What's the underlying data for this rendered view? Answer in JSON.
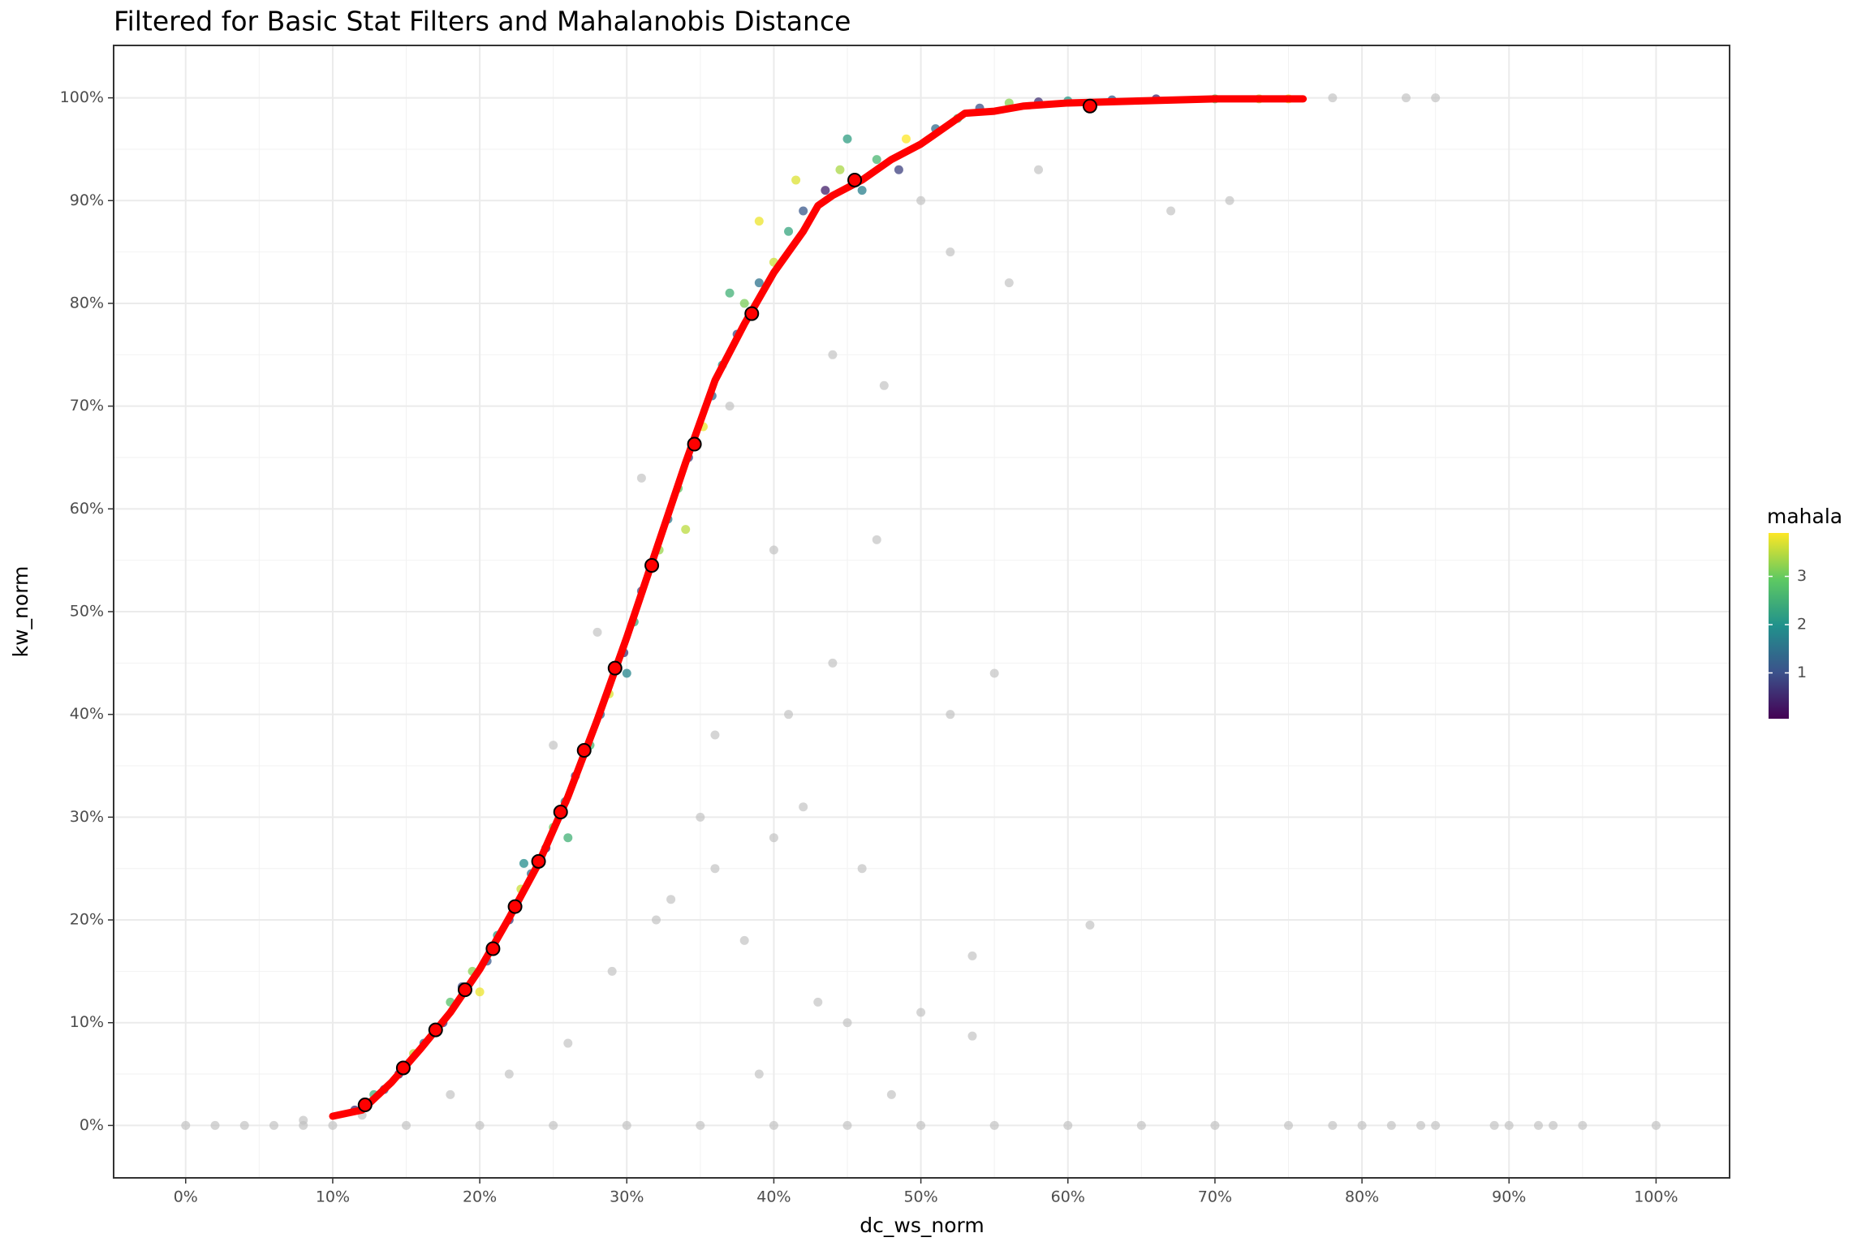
{
  "chart_data": {
    "type": "scatter",
    "title": "Filtered for Basic Stat Filters and Mahalanobis Distance",
    "x_label": "dc_ws_norm",
    "y_label": "kw_norm",
    "xlim": [
      -4.9,
      105
    ],
    "ylim": [
      -5.1,
      105.1
    ],
    "grid": true,
    "minor_grid": true,
    "xticks": [
      {
        "value": 0,
        "label": "0%"
      },
      {
        "value": 10,
        "label": "10%"
      },
      {
        "value": 20,
        "label": "20%"
      },
      {
        "value": 30,
        "label": "30%"
      },
      {
        "value": 40,
        "label": "40%"
      },
      {
        "value": 50,
        "label": "50%"
      },
      {
        "value": 60,
        "label": "60%"
      },
      {
        "value": 70,
        "label": "70%"
      },
      {
        "value": 80,
        "label": "80%"
      },
      {
        "value": 90,
        "label": "90%"
      },
      {
        "value": 100,
        "label": "100%"
      }
    ],
    "yticks": [
      {
        "value": 0,
        "label": "0%"
      },
      {
        "value": 10,
        "label": "10%"
      },
      {
        "value": 20,
        "label": "20%"
      },
      {
        "value": 30,
        "label": "30%"
      },
      {
        "value": 40,
        "label": "40%"
      },
      {
        "value": 50,
        "label": "50%"
      },
      {
        "value": 60,
        "label": "60%"
      },
      {
        "value": 70,
        "label": "70%"
      },
      {
        "value": 80,
        "label": "80%"
      },
      {
        "value": 90,
        "label": "90%"
      },
      {
        "value": 100,
        "label": "100%"
      }
    ],
    "filtered_out": {
      "color": "#bebebe",
      "x": [
        0,
        2,
        4,
        6,
        8,
        10,
        15,
        20,
        25,
        30,
        35,
        40,
        45,
        50,
        55,
        60,
        65,
        70,
        75,
        78,
        80,
        82,
        84,
        85,
        89,
        90,
        92,
        93,
        95,
        100,
        8,
        12,
        18,
        22,
        26,
        29,
        32,
        35,
        36,
        40,
        44,
        47,
        41,
        38,
        45,
        48,
        52,
        55,
        61.5,
        67,
        71,
        53.5,
        53.5,
        56,
        52,
        28,
        25,
        31,
        37,
        44,
        47.5,
        50,
        58,
        83,
        85,
        78,
        40,
        42,
        46,
        43,
        39,
        50,
        33,
        36
      ],
      "values": [
        0,
        0,
        0,
        0,
        0,
        0,
        0,
        0,
        0,
        0,
        0,
        0,
        0,
        0,
        0,
        0,
        0,
        0,
        0,
        0,
        0,
        0,
        0,
        0,
        0,
        0,
        0,
        0,
        0,
        0,
        0.5,
        1,
        3,
        5,
        8,
        15,
        20,
        30,
        38,
        56,
        45,
        57,
        40,
        18,
        10,
        3,
        40,
        44,
        19.5,
        89,
        90,
        16.5,
        8.7,
        82,
        85,
        48,
        37,
        63,
        70,
        75,
        72,
        90,
        93,
        100,
        100,
        100,
        28,
        31,
        25,
        12,
        5,
        11,
        22,
        25
      ]
    },
    "colorbar": {
      "title": "mahala",
      "lim": [
        0.05,
        3.9
      ],
      "ticks": [
        1,
        2,
        3
      ],
      "colors": [
        "#440154",
        "#3b528b",
        "#21918c",
        "#5ec962",
        "#fde725"
      ]
    },
    "points": {
      "x": [
        11.5,
        12.8,
        13.5,
        14.5,
        15.5,
        16.2,
        17.5,
        18,
        18.8,
        19.5,
        20.5,
        21.2,
        22,
        22.8,
        23.5,
        24.5,
        25,
        25.8,
        26.5,
        27.5,
        28.2,
        28.8,
        29.8,
        30.5,
        31,
        32.2,
        32.8,
        33.5,
        34.2,
        35.2,
        35.8,
        36.5,
        37.5,
        38,
        39,
        40,
        41,
        42,
        43.5,
        44.5,
        46,
        47,
        48.5,
        49,
        51,
        52.5,
        54,
        56,
        58,
        60,
        63,
        66,
        70,
        73,
        75,
        34,
        30,
        26,
        20,
        45,
        39,
        41.5,
        23,
        37
      ],
      "values": [
        1.5,
        3,
        3.5,
        5,
        7,
        8,
        10,
        12,
        13.5,
        15,
        16,
        18.5,
        20,
        23,
        24.5,
        27,
        29,
        31.5,
        34,
        37,
        40,
        42,
        46,
        49,
        52,
        56,
        59,
        62,
        65,
        68,
        71,
        74,
        77,
        80,
        82,
        84,
        87,
        89,
        91,
        93,
        91,
        94,
        93,
        96,
        97,
        98,
        99,
        99.5,
        99.6,
        99.7,
        99.8,
        99.9,
        99.9,
        99.9,
        99.9,
        58,
        44,
        28,
        13,
        96,
        88,
        92,
        25.5,
        81
      ],
      "color_values": [
        0.5,
        2.5,
        1.2,
        0.4,
        3.5,
        1.5,
        0.6,
        2.8,
        0.9,
        3.2,
        1.1,
        2.2,
        0.7,
        3.6,
        1.4,
        0.5,
        3,
        1.8,
        0.8,
        2.6,
        1.2,
        3.7,
        0.6,
        2.4,
        1,
        3.3,
        1.6,
        2.9,
        0.7,
        3.8,
        1.3,
        2,
        0.9,
        3.1,
        1.5,
        3.6,
        2.3,
        1.1,
        0.4,
        3.4,
        1.7,
        2.6,
        0.8,
        3.9,
        1.4,
        2.7,
        1,
        3.2,
        0.6,
        2.1,
        1.2,
        0.5,
        2.9,
        3.5,
        3.8,
        3.5,
        1.8,
        2.5,
        3.8,
        2.2,
        3.8,
        3.7,
        1.9,
        2.5
      ]
    },
    "smooth": {
      "color": "#ff0000",
      "x": [
        10,
        12,
        14,
        16,
        18,
        20,
        22,
        24,
        26,
        28,
        30,
        32,
        34,
        36,
        38,
        40,
        42,
        43,
        44,
        46,
        48,
        50,
        52,
        53,
        55,
        57,
        60,
        65,
        70,
        76
      ],
      "values": [
        0.9,
        1.5,
        4.2,
        7.5,
        11,
        15.2,
        20.2,
        25.5,
        32,
        39.5,
        47.5,
        56,
        64.5,
        72.5,
        78,
        83,
        87,
        89.5,
        90.5,
        92,
        94,
        95.5,
        97.5,
        98.5,
        98.7,
        99.2,
        99.5,
        99.7,
        99.9,
        99.9
      ]
    },
    "binned": {
      "color": "#ff0000",
      "x": [
        12.2,
        14.8,
        17,
        19,
        20.9,
        22.4,
        24,
        25.5,
        27.1,
        29.2,
        31.7,
        34.6,
        38.5,
        45.5,
        61.5
      ],
      "values": [
        2,
        5.6,
        9.3,
        13.2,
        17.2,
        21.3,
        25.7,
        30.5,
        36.5,
        44.5,
        54.5,
        66.3,
        79,
        92,
        99.2
      ]
    }
  }
}
